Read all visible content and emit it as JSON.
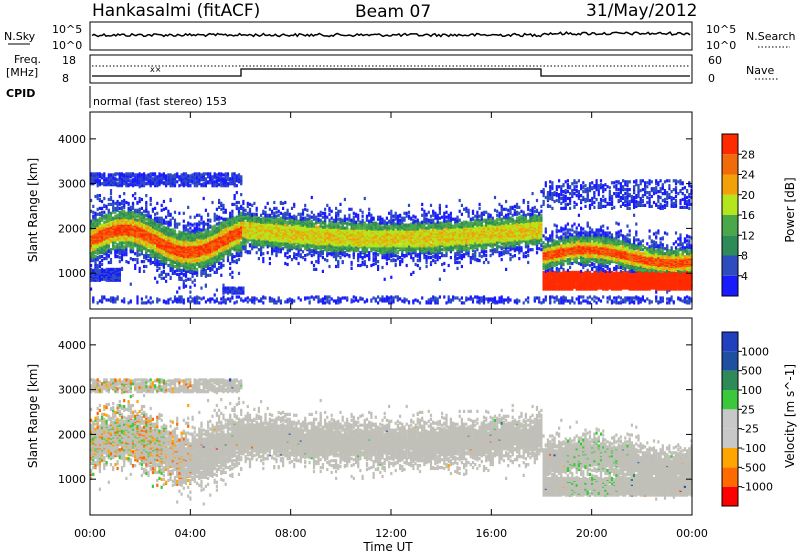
{
  "header": {
    "station": "Hankasalmi (fitACF)",
    "beam": "Beam 07",
    "date": "31/May/2012"
  },
  "top_panels": {
    "nsky_label": "N.Sky",
    "nsky_ticks": [
      "10^5",
      "10^0"
    ],
    "nsearch_label": "N.Search",
    "nsearch_ticks": [
      "10^5",
      "10^0"
    ],
    "freq_label_line1": "Freq.",
    "freq_label_line2": "[MHz]",
    "freq_ticks": [
      "18",
      "8"
    ],
    "nave_label": "Nave",
    "nave_ticks": [
      "60",
      "0"
    ],
    "cpid_label": "CPID",
    "cpid_text": "normal (fast stereo) 153"
  },
  "colors": {
    "power": [
      "#1a1aff",
      "#2d4dbf",
      "#2e8b57",
      "#4aa84a",
      "#b5e61d",
      "#f2a10a",
      "#f26b0a",
      "#ff2a00"
    ],
    "velocity": [
      "#ff0000",
      "#ff6a00",
      "#ffa500",
      "#c8c8c8",
      "#c8c8c8",
      "#3cc83c",
      "#2e8b57",
      "#1f4fa0",
      "#2040c0"
    ],
    "ground_scatter": "#c0c0b8"
  },
  "chart_data": [
    {
      "type": "heatmap",
      "name": "Power panel",
      "xlabel": "",
      "ylabel": "Slant Range [km]",
      "x_ticks": [
        "00:00",
        "04:00",
        "08:00",
        "12:00",
        "16:00",
        "20:00",
        "00:00"
      ],
      "xlim_hours": [
        0,
        24
      ],
      "ylim": [
        200,
        4600
      ],
      "y_ticks": [
        1000,
        2000,
        3000,
        4000
      ],
      "colorbar_label": "Power [dB]",
      "colorbar_ticks": [
        "4",
        "8",
        "12",
        "16",
        "20",
        "24",
        "28"
      ],
      "colorbar_range": [
        0,
        32
      ]
    },
    {
      "type": "heatmap",
      "name": "Velocity panel",
      "xlabel": "Time UT",
      "ylabel": "Slant Range [km]",
      "x_ticks": [
        "00:00",
        "04:00",
        "08:00",
        "12:00",
        "16:00",
        "20:00",
        "00:00"
      ],
      "xlim_hours": [
        0,
        24
      ],
      "ylim": [
        200,
        4600
      ],
      "y_ticks": [
        1000,
        2000,
        3000,
        4000
      ],
      "colorbar_label": "Velocity [m s^-1]",
      "colorbar_ticks": [
        "-1000",
        "-500",
        "-100",
        "-25",
        "25",
        "100",
        "500",
        "1000"
      ]
    }
  ]
}
